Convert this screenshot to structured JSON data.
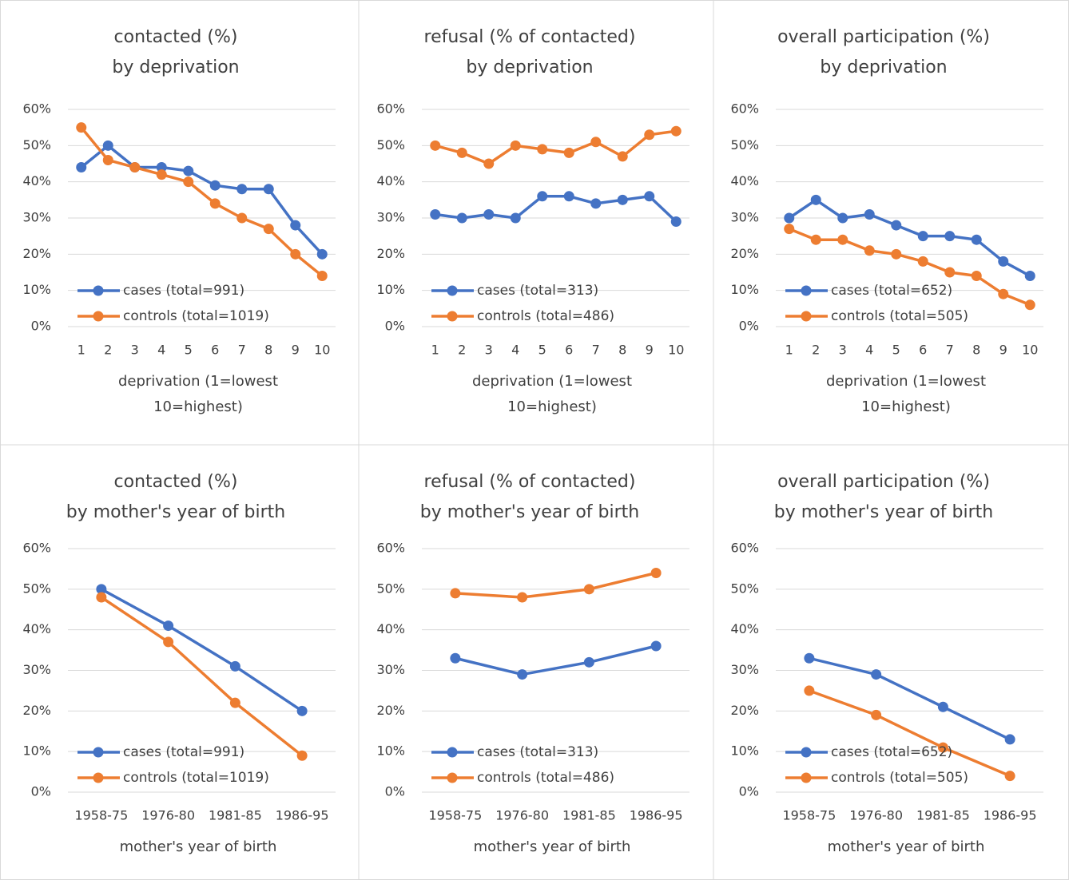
{
  "chart_data": [
    {
      "type": "line",
      "title": [
        "contacted (%)",
        "by deprivation"
      ],
      "x_label": [
        "deprivation (1=lowest",
        "10=highest)"
      ],
      "categories": [
        "1",
        "2",
        "3",
        "4",
        "5",
        "6",
        "7",
        "8",
        "9",
        "10"
      ],
      "series": [
        {
          "name": "cases (total=991)",
          "color": "#4472c4",
          "values": [
            44,
            50,
            44,
            44,
            43,
            39,
            38,
            38,
            28,
            20
          ]
        },
        {
          "name": "controls (total=1019)",
          "color": "#ed7d31",
          "values": [
            55,
            46,
            44,
            42,
            40,
            34,
            30,
            27,
            20,
            14
          ]
        }
      ],
      "ylim": [
        0,
        60
      ],
      "yticks": [
        {
          "value": 0,
          "label": "0%"
        },
        {
          "value": 10,
          "label": "10%"
        },
        {
          "value": 20,
          "label": "20%"
        },
        {
          "value": 30,
          "label": "30%"
        },
        {
          "value": 40,
          "label": "40%"
        },
        {
          "value": 50,
          "label": "50%"
        },
        {
          "value": 60,
          "label": "60%"
        }
      ],
      "grid": true,
      "legend": "lower left"
    },
    {
      "type": "line",
      "title": [
        "refusal (% of contacted)",
        "by deprivation"
      ],
      "x_label": [
        "deprivation (1=lowest",
        "10=highest)"
      ],
      "categories": [
        "1",
        "2",
        "3",
        "4",
        "5",
        "6",
        "7",
        "8",
        "9",
        "10"
      ],
      "series": [
        {
          "name": "cases (total=313)",
          "color": "#4472c4",
          "values": [
            31,
            30,
            31,
            30,
            36,
            36,
            34,
            35,
            36,
            29
          ]
        },
        {
          "name": "controls (total=486)",
          "color": "#ed7d31",
          "values": [
            50,
            48,
            45,
            50,
            49,
            48,
            51,
            47,
            53,
            54
          ]
        }
      ],
      "ylim": [
        0,
        60
      ],
      "yticks": [
        {
          "value": 0,
          "label": "0%"
        },
        {
          "value": 10,
          "label": "10%"
        },
        {
          "value": 20,
          "label": "20%"
        },
        {
          "value": 30,
          "label": "30%"
        },
        {
          "value": 40,
          "label": "40%"
        },
        {
          "value": 50,
          "label": "50%"
        },
        {
          "value": 60,
          "label": "60%"
        }
      ],
      "grid": true,
      "legend": "lower left"
    },
    {
      "type": "line",
      "title": [
        "overall participation (%)",
        "by deprivation"
      ],
      "x_label": [
        "deprivation (1=lowest",
        "10=highest)"
      ],
      "categories": [
        "1",
        "2",
        "3",
        "4",
        "5",
        "6",
        "7",
        "8",
        "9",
        "10"
      ],
      "series": [
        {
          "name": "cases (total=652)",
          "color": "#4472c4",
          "values": [
            30,
            35,
            30,
            31,
            28,
            25,
            25,
            24,
            18,
            14
          ]
        },
        {
          "name": "controls (total=505)",
          "color": "#ed7d31",
          "values": [
            27,
            24,
            24,
            21,
            20,
            18,
            15,
            14,
            9,
            6
          ]
        }
      ],
      "ylim": [
        0,
        60
      ],
      "yticks": [
        {
          "value": 0,
          "label": "0%"
        },
        {
          "value": 10,
          "label": "10%"
        },
        {
          "value": 20,
          "label": "20%"
        },
        {
          "value": 30,
          "label": "30%"
        },
        {
          "value": 40,
          "label": "40%"
        },
        {
          "value": 50,
          "label": "50%"
        },
        {
          "value": 60,
          "label": "60%"
        }
      ],
      "grid": true,
      "legend": "lower left"
    },
    {
      "type": "line",
      "title": [
        "contacted (%)",
        "by mother's year of birth"
      ],
      "x_label": [
        "mother's year of birth"
      ],
      "categories": [
        "1958-75",
        "1976-80",
        "1981-85",
        "1986-95"
      ],
      "series": [
        {
          "name": "cases (total=991)",
          "color": "#4472c4",
          "values": [
            50,
            41,
            31,
            20
          ]
        },
        {
          "name": "controls (total=1019)",
          "color": "#ed7d31",
          "values": [
            48,
            37,
            22,
            9
          ]
        }
      ],
      "ylim": [
        0,
        60
      ],
      "yticks": [
        {
          "value": 0,
          "label": "0%"
        },
        {
          "value": 10,
          "label": "10%"
        },
        {
          "value": 20,
          "label": "20%"
        },
        {
          "value": 30,
          "label": "30%"
        },
        {
          "value": 40,
          "label": "40%"
        },
        {
          "value": 50,
          "label": "50%"
        },
        {
          "value": 60,
          "label": "60%"
        }
      ],
      "grid": true,
      "legend": "lower left"
    },
    {
      "type": "line",
      "title": [
        "refusal (% of contacted)",
        "by mother's year of birth"
      ],
      "x_label": [
        "mother's year of birth"
      ],
      "categories": [
        "1958-75",
        "1976-80",
        "1981-85",
        "1986-95"
      ],
      "series": [
        {
          "name": "cases (total=313)",
          "color": "#4472c4",
          "values": [
            33,
            29,
            32,
            36
          ]
        },
        {
          "name": "controls (total=486)",
          "color": "#ed7d31",
          "values": [
            49,
            48,
            50,
            54
          ]
        }
      ],
      "ylim": [
        0,
        60
      ],
      "yticks": [
        {
          "value": 0,
          "label": "0%"
        },
        {
          "value": 10,
          "label": "10%"
        },
        {
          "value": 20,
          "label": "20%"
        },
        {
          "value": 30,
          "label": "30%"
        },
        {
          "value": 40,
          "label": "40%"
        },
        {
          "value": 50,
          "label": "50%"
        },
        {
          "value": 60,
          "label": "60%"
        }
      ],
      "grid": true,
      "legend": "lower left"
    },
    {
      "type": "line",
      "title": [
        "overall participation (%)",
        "by mother's year of birth"
      ],
      "x_label": [
        "mother's year of birth"
      ],
      "categories": [
        "1958-75",
        "1976-80",
        "1981-85",
        "1986-95"
      ],
      "series": [
        {
          "name": "cases (total=652)",
          "color": "#4472c4",
          "values": [
            33,
            29,
            21,
            13
          ]
        },
        {
          "name": "controls (total=505)",
          "color": "#ed7d31",
          "values": [
            25,
            19,
            11,
            4
          ]
        }
      ],
      "ylim": [
        0,
        60
      ],
      "yticks": [
        {
          "value": 0,
          "label": "0%"
        },
        {
          "value": 10,
          "label": "10%"
        },
        {
          "value": 20,
          "label": "20%"
        },
        {
          "value": 30,
          "label": "30%"
        },
        {
          "value": 40,
          "label": "40%"
        },
        {
          "value": 50,
          "label": "50%"
        },
        {
          "value": 60,
          "label": "60%"
        }
      ],
      "grid": true,
      "legend": "lower left"
    }
  ]
}
